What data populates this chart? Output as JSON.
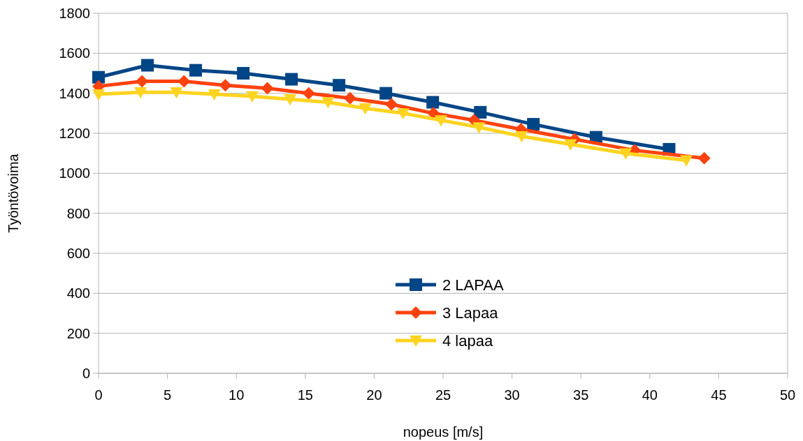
{
  "chart_data": {
    "type": "line",
    "xlabel": "nopeus [m/s]",
    "ylabel": "Työntövoima",
    "xlim": [
      0,
      50
    ],
    "xticks": [
      0,
      5,
      10,
      15,
      20,
      25,
      30,
      35,
      40,
      45,
      50
    ],
    "ylim": [
      0,
      1800
    ],
    "yticks": [
      0,
      200,
      400,
      600,
      800,
      1000,
      1200,
      1400,
      1600,
      1800
    ],
    "grid": "y",
    "legend": "bottom",
    "series": [
      {
        "name": "2 LAPAA",
        "color": "#004586",
        "marker": "square",
        "x": [
          0,
          3.55,
          7.05,
          10.5,
          14.0,
          17.45,
          20.85,
          24.25,
          27.7,
          31.55,
          36.1,
          41.4
        ],
        "values": [
          1480,
          1540,
          1515,
          1500,
          1470,
          1440,
          1400,
          1355,
          1305,
          1245,
          1180,
          1120
        ]
      },
      {
        "name": "3 Lapaa",
        "color": "#ff420e",
        "marker": "diamond",
        "x": [
          0,
          3.15,
          6.2,
          9.2,
          12.25,
          15.25,
          18.25,
          21.25,
          24.3,
          27.25,
          30.65,
          34.55,
          38.9,
          43.95
        ],
        "values": [
          1435,
          1460,
          1460,
          1440,
          1425,
          1400,
          1375,
          1345,
          1300,
          1265,
          1220,
          1170,
          1115,
          1075
        ]
      },
      {
        "name": "4 lapaa",
        "color": "#ffd320",
        "marker": "triangle",
        "x": [
          0,
          3.05,
          5.65,
          8.4,
          11.15,
          13.9,
          16.65,
          19.35,
          22.1,
          24.85,
          27.6,
          30.7,
          34.25,
          38.25,
          42.65
        ],
        "values": [
          1395,
          1405,
          1405,
          1395,
          1385,
          1370,
          1355,
          1325,
          1300,
          1265,
          1230,
          1185,
          1145,
          1100,
          1065
        ]
      }
    ]
  }
}
